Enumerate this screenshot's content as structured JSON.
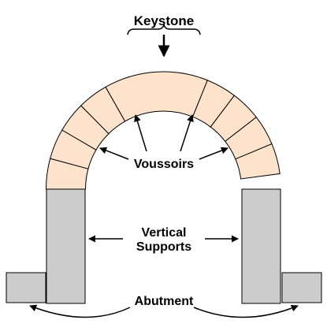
{
  "labels": {
    "keystone": "Keystone",
    "voussoirs": "Voussoirs",
    "vertical_line1": "Vertical",
    "vertical_line2": "Supports",
    "abutment": "Abutment"
  },
  "colors": {
    "voussoir_fill": "#fde3cc",
    "keystone_fill": "#f07a0c",
    "support_fill": "#cccccc",
    "stroke": "#000000",
    "background": "#ffffff"
  },
  "arch": {
    "voussoir_count": 10,
    "keystone_index": 5
  }
}
